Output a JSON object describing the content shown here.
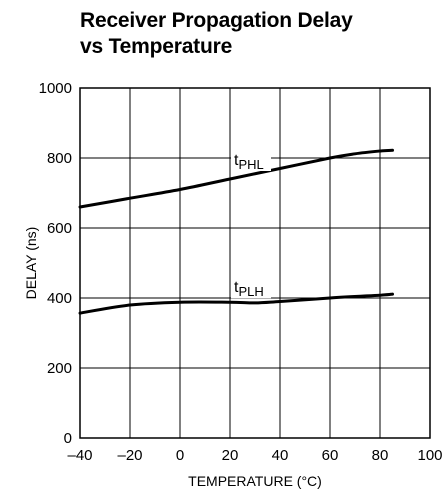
{
  "chart_data": {
    "type": "line",
    "title_line1": "Receiver Propagation Delay",
    "title_line2": "vs Temperature",
    "xlabel": "TEMPERATURE (°C)",
    "ylabel": "DELAY (ns)",
    "xlim": [
      -40,
      100
    ],
    "ylim": [
      0,
      1000
    ],
    "xticks": [
      -40,
      -20,
      0,
      20,
      40,
      60,
      80,
      100
    ],
    "yticks": [
      0,
      200,
      400,
      600,
      800,
      1000
    ],
    "xtick_labels": [
      "–40",
      "–20",
      "0",
      "20",
      "40",
      "60",
      "80",
      "100"
    ],
    "ytick_labels": [
      "0",
      "200",
      "400",
      "600",
      "800",
      "1000"
    ],
    "grid": true,
    "series": [
      {
        "name": "tPHL",
        "label_main": "t",
        "label_sub": "PHL",
        "x": [
          -40,
          -20,
          0,
          20,
          40,
          60,
          70,
          80,
          85
        ],
        "y": [
          660,
          685,
          710,
          740,
          770,
          800,
          812,
          820,
          822
        ]
      },
      {
        "name": "tPLH",
        "label_main": "t",
        "label_sub": "PLH",
        "x": [
          -40,
          -20,
          0,
          20,
          30,
          40,
          60,
          80,
          85
        ],
        "y": [
          357,
          380,
          388,
          388,
          386,
          390,
          400,
          408,
          411
        ]
      }
    ]
  }
}
